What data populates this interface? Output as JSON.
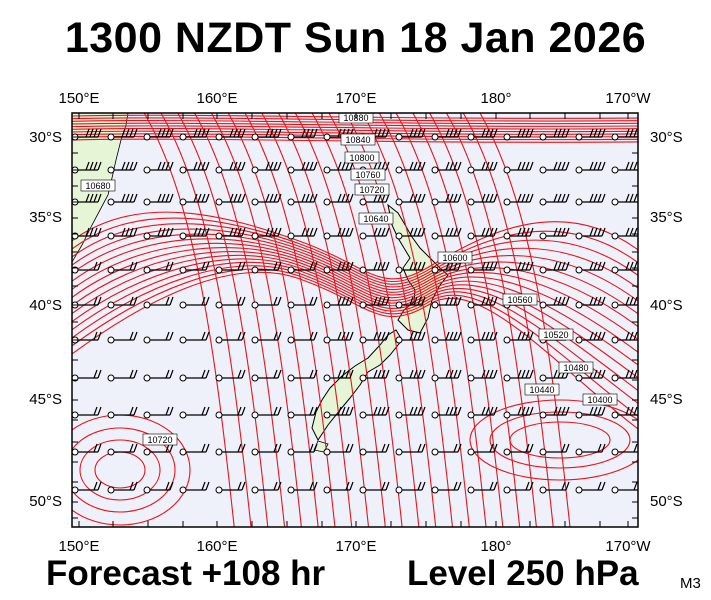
{
  "header": {
    "title": "1300 NZDT Sun 18 Jan 2026"
  },
  "footer": {
    "forecast": "Forecast +108 hr",
    "level": "Level 250 hPa",
    "model": "M3"
  },
  "map": {
    "type": "upper-air geopotential height contours with wind barbs",
    "lon_range": [
      150,
      190
    ],
    "lat_range": [
      -51.8,
      -28.8
    ],
    "lon_ticks": [
      "150°E",
      "160°E",
      "170°E",
      "180°",
      "170°W"
    ],
    "lat_ticks": [
      "30°S",
      "35°S",
      "40°S",
      "45°S",
      "50°S"
    ],
    "contour_labels": [
      "10880",
      "10840",
      "10800",
      "10760",
      "10720",
      "10680",
      "10640",
      "10600",
      "10560",
      "10520",
      "10480",
      "10440",
      "10400",
      "10720"
    ],
    "colors": {
      "contour": "#e8141a",
      "land": "#e6f5d6",
      "coast": "#000000",
      "background": "#eef0fa",
      "frame": "#000000"
    }
  }
}
